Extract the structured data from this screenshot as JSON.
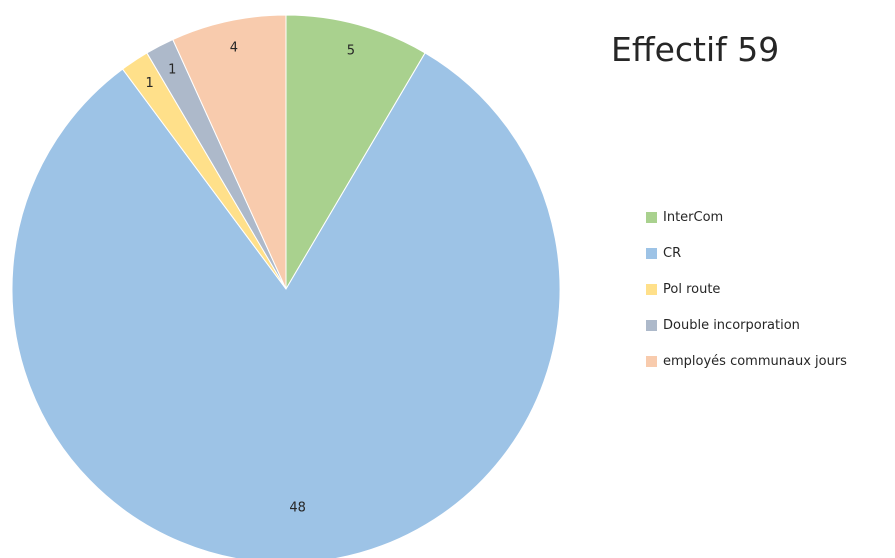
{
  "chart_data": {
    "type": "pie",
    "title": "Effectif 59",
    "categories": [
      "InterCom",
      "CR",
      "Pol route",
      "Double incorporation",
      "employés communaux jours"
    ],
    "values": [
      5,
      48,
      1,
      1,
      4
    ],
    "colors": [
      "#a9d18e",
      "#9dc3e6",
      "#ffe08a",
      "#adb9ca",
      "#f8cbad"
    ],
    "data_labels": [
      "5",
      "48",
      "1",
      "1",
      "4"
    ],
    "legend_position": "right",
    "start_angle_deg": 0,
    "direction": "clockwise"
  }
}
